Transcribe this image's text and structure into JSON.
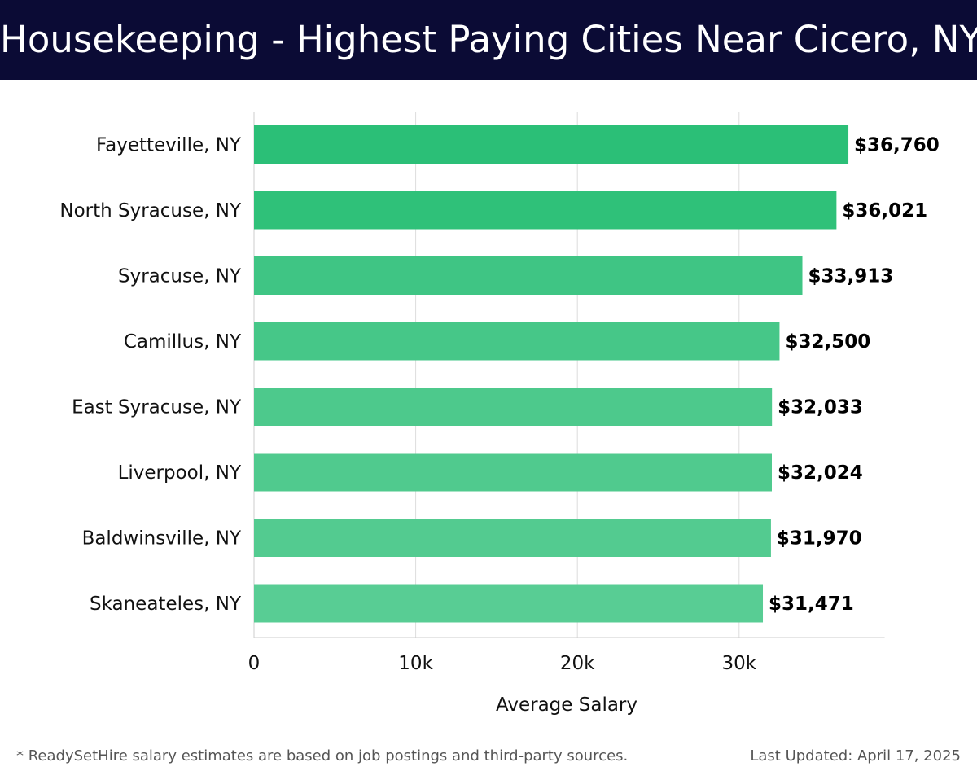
{
  "header": {
    "title": "Housekeeping - Highest Paying Cities Near Cicero, NY"
  },
  "chart_data": {
    "type": "bar",
    "orientation": "horizontal",
    "categories": [
      "Fayetteville, NY",
      "North Syracuse, NY",
      "Syracuse, NY",
      "Camillus, NY",
      "East Syracuse, NY",
      "Liverpool, NY",
      "Baldwinsville, NY",
      "Skaneateles, NY"
    ],
    "values": [
      36760,
      36021,
      33913,
      32500,
      32033,
      32024,
      31970,
      31471
    ],
    "data_labels": [
      "$36,760",
      "$36,021",
      "$33,913",
      "$32,500",
      "$32,033",
      "$32,024",
      "$31,970",
      "$31,471"
    ],
    "bar_colors": [
      "#2bbf77",
      "#2fc179",
      "#3fc584",
      "#46c788",
      "#4dc98c",
      "#50ca8e",
      "#53cb90",
      "#58cd94"
    ],
    "xlabel": "Average Salary",
    "ylabel": "",
    "xlim": [
      0,
      39000
    ],
    "x_ticks": [
      0,
      10000,
      20000,
      30000
    ],
    "x_tick_labels": [
      "0",
      "10k",
      "20k",
      "30k"
    ],
    "grid": "vertical",
    "legend": "none"
  },
  "footer": {
    "note": "* ReadySetHire salary estimates are based on job postings and third-party sources.",
    "updated": "Last Updated: April 17, 2025"
  },
  "colors": {
    "header_bg": "#0b0b35",
    "header_text": "#ffffff",
    "grid": "#dddddd",
    "axis": "#cccccc",
    "label_text": "#111111",
    "footer_text": "#555555"
  }
}
